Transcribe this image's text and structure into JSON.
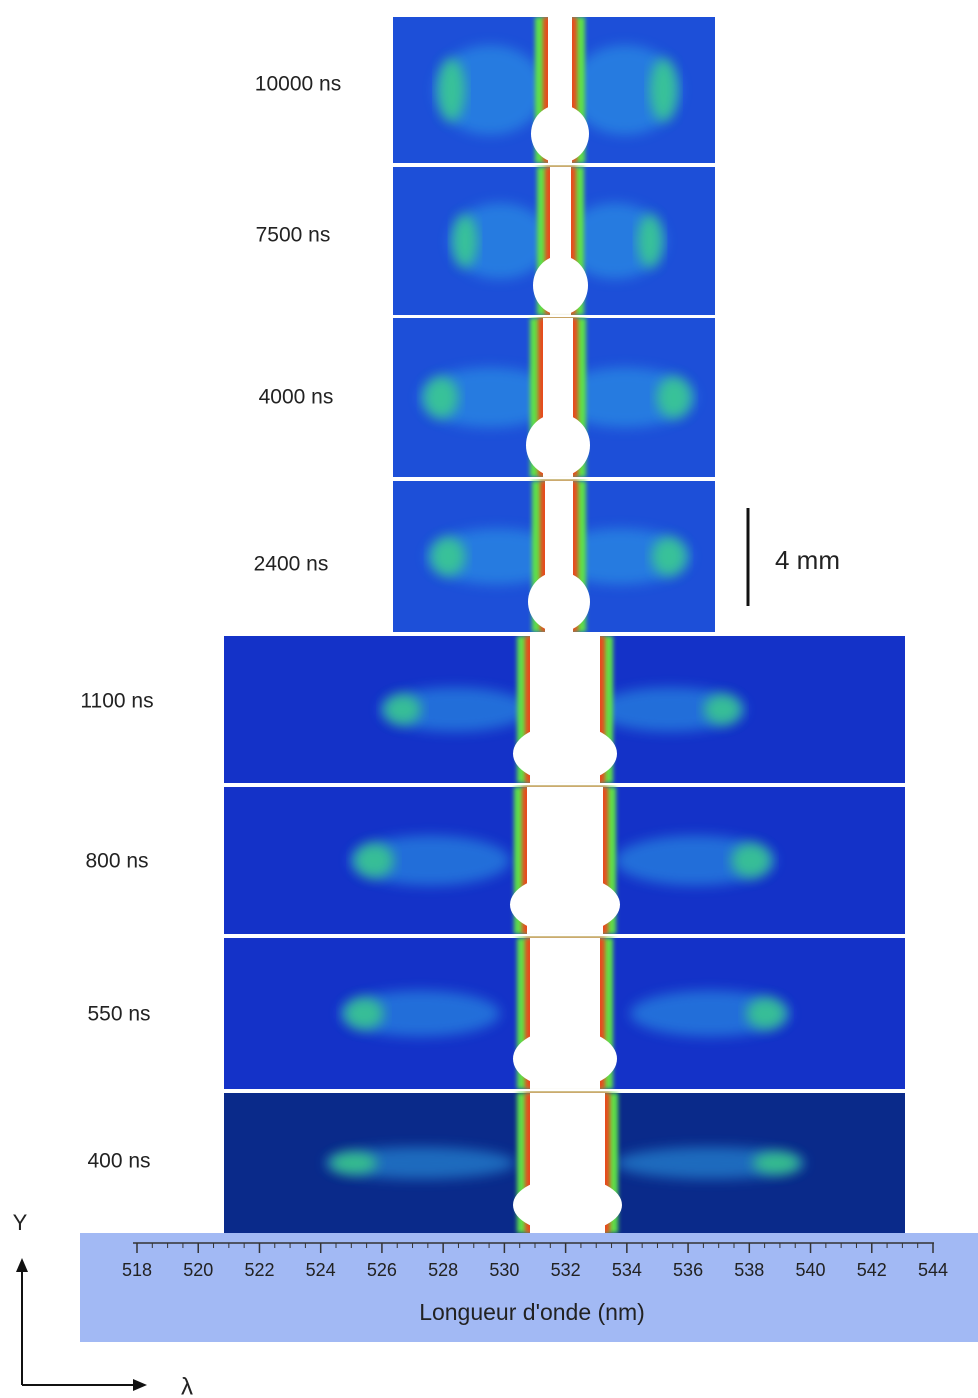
{
  "panels": [
    {
      "label": "10000 ns"
    },
    {
      "label": "7500 ns"
    },
    {
      "label": "4000 ns"
    },
    {
      "label": "2400 ns"
    },
    {
      "label": "1100 ns"
    },
    {
      "label": "800 ns"
    },
    {
      "label": "550 ns"
    },
    {
      "label": "400 ns"
    }
  ],
  "scale_bar": {
    "label": "4 mm"
  },
  "axis": {
    "title": "Longueur d'onde (nm)",
    "ticks": [
      518,
      520,
      522,
      524,
      526,
      528,
      530,
      532,
      534,
      536,
      538,
      540,
      542,
      544
    ]
  },
  "axes_symbols": {
    "y": "Y",
    "x": "λ"
  }
}
